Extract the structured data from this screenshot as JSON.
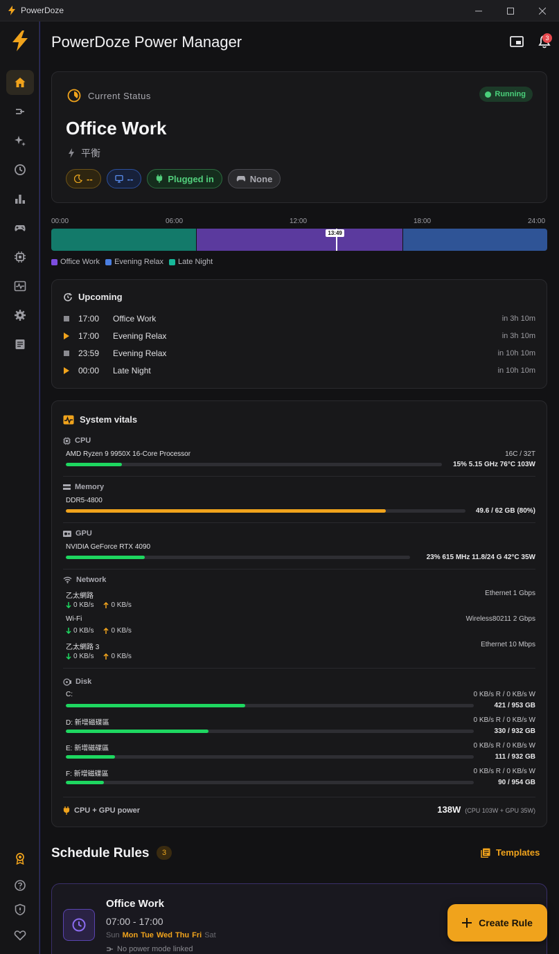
{
  "window": {
    "title": "PowerDoze"
  },
  "header": {
    "title": "PowerDoze Power Manager",
    "notification_count": "3"
  },
  "status": {
    "label": "Current Status",
    "state": "Running",
    "mode_name": "Office Work",
    "power_plan": "平衡",
    "chips": {
      "sleep": "--",
      "display": "--",
      "power": "Plugged in",
      "game": "None"
    }
  },
  "timeline": {
    "ticks": [
      "00:00",
      "06:00",
      "12:00",
      "18:00",
      "24:00"
    ],
    "now": "13:49",
    "now_fraction": 0.576,
    "segments": [
      {
        "name": "Late Night",
        "start": "00:00",
        "end": "07:00",
        "color": "#137a6a"
      },
      {
        "name": "Office Work",
        "start": "07:00",
        "end": "17:00",
        "color": "#5b3a9e"
      },
      {
        "name": "Evening Relax",
        "start": "17:00",
        "end": "24:00",
        "color": "#2f5496"
      }
    ],
    "legend": [
      {
        "name": "Office Work",
        "color": "#7c4ddf"
      },
      {
        "name": "Evening Relax",
        "color": "#4a7ee0"
      },
      {
        "name": "Late Night",
        "color": "#17b89a"
      }
    ]
  },
  "upcoming": {
    "title": "Upcoming",
    "items": [
      {
        "marker": "stop",
        "time": "17:00",
        "name": "Office Work",
        "eta": "in 3h 10m"
      },
      {
        "marker": "play",
        "time": "17:00",
        "name": "Evening Relax",
        "eta": "in 3h 10m"
      },
      {
        "marker": "stop",
        "time": "23:59",
        "name": "Evening Relax",
        "eta": "in 10h 10m"
      },
      {
        "marker": "play",
        "time": "00:00",
        "name": "Late Night",
        "eta": "in 10h 10m"
      }
    ]
  },
  "vitals": {
    "title": "System vitals",
    "cpu": {
      "label": "CPU",
      "name": "AMD Ryzen 9 9950X 16-Core Processor",
      "cores": "16C / 32T",
      "usage": 15,
      "stats": "15%  5.15 GHz  76°C  103W"
    },
    "memory": {
      "label": "Memory",
      "name": "DDR5-4800",
      "usage": 80,
      "stats": "49.6 / 62 GB  (80%)"
    },
    "gpu": {
      "label": "GPU",
      "name": "NVIDIA GeForce RTX 4090",
      "usage": 23,
      "stats": "23%  615 MHz  11.8/24 G  42°C  35W"
    },
    "network": {
      "label": "Network",
      "adapters": [
        {
          "name": "乙太網路",
          "type": "Ethernet  1 Gbps",
          "down": "0 KB/s",
          "up": "0 KB/s"
        },
        {
          "name": "Wi-Fi",
          "type": "Wireless80211  2 Gbps",
          "down": "0 KB/s",
          "up": "0 KB/s"
        },
        {
          "name": "乙太網路 3",
          "type": "Ethernet  10 Mbps",
          "down": "0 KB/s",
          "up": "0 KB/s"
        }
      ]
    },
    "disk": {
      "label": "Disk",
      "drives": [
        {
          "name": "C:",
          "io": "0 KB/s R  /  0 KB/s W",
          "usage": 44,
          "stats": "421 / 953 GB"
        },
        {
          "name": "D: 新增磁碟區",
          "io": "0 KB/s R  /  0 KB/s W",
          "usage": 35,
          "stats": "330 / 932 GB"
        },
        {
          "name": "E: 新增磁碟區",
          "io": "0 KB/s R  /  0 KB/s W",
          "usage": 12,
          "stats": "111 / 932 GB"
        },
        {
          "name": "F: 新增磁碟區",
          "io": "0 KB/s R  /  0 KB/s W",
          "usage": 9.4,
          "stats": "90 / 954 GB"
        }
      ]
    },
    "power": {
      "label": "CPU + GPU power",
      "total": "138W",
      "detail": "(CPU 103W + GPU 35W)"
    }
  },
  "schedule": {
    "title": "Schedule Rules",
    "count": "3",
    "templates_label": "Templates",
    "rules": [
      {
        "name": "Office Work",
        "time": "07:00 - 17:00",
        "days": [
          {
            "d": "Sun",
            "on": false
          },
          {
            "d": "Mon",
            "on": true
          },
          {
            "d": "Tue",
            "on": true
          },
          {
            "d": "Wed",
            "on": true
          },
          {
            "d": "Thu",
            "on": true
          },
          {
            "d": "Fri",
            "on": true
          },
          {
            "d": "Sat",
            "on": false
          }
        ],
        "note": "No power mode linked"
      }
    ],
    "create_label": "Create Rule"
  },
  "colors": {
    "accent": "#f0a31c",
    "green": "#1ed760",
    "bar_track": "#2e2e33"
  }
}
